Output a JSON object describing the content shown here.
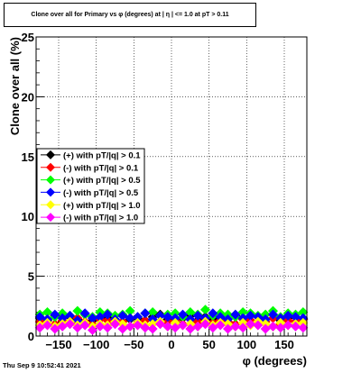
{
  "window": {
    "title": "Clone  over all for Primary vs φ (degrees) at |   η | <= 1.0 at pT > 0.11",
    "timestamp": "Thu Sep  9 10:52:41 2021"
  },
  "chart_data": {
    "type": "scatter",
    "title": "Clone  over all for Primary vs φ (degrees) at |   η | <= 1.0 at pT > 0.11",
    "xlabel": "φ (degrees)",
    "ylabel": "Clone  over all (%)",
    "xlim": [
      -180,
      180
    ],
    "ylim": [
      0,
      25
    ],
    "x_ticks": [
      -150,
      -100,
      -50,
      0,
      50,
      100,
      150
    ],
    "x_tick_labels": [
      "−150",
      "−100",
      "−50",
      "0",
      "50",
      "100",
      "150"
    ],
    "y_ticks": [
      0,
      5,
      10,
      15,
      20,
      25
    ],
    "y_tick_labels": [
      "0",
      "5",
      "10",
      "15",
      "20",
      "25"
    ],
    "grid": true,
    "legend_position": "left-middle",
    "series": [
      {
        "name": "(+) with pT/|q| > 0.1",
        "color": "#000000",
        "values": [
          1.5,
          1.3,
          1.7,
          1.2,
          1.6,
          1.4,
          1.8,
          1.3,
          1.5,
          1.6,
          1.2,
          1.7,
          1.4,
          1.5,
          1.3,
          1.6,
          1.8,
          1.4,
          1.2,
          1.5,
          1.7,
          1.3,
          1.6,
          1.4,
          1.5,
          1.2,
          1.7,
          1.5,
          1.3,
          1.6,
          1.4,
          1.8,
          1.3,
          1.5,
          1.6,
          1.4
        ]
      },
      {
        "name": "(-) with pT/|q| > 0.1",
        "color": "#ff0000",
        "values": [
          1.2,
          1.4,
          1.0,
          1.3,
          1.1,
          1.5,
          1.2,
          1.0,
          1.4,
          1.3,
          1.1,
          1.2,
          1.5,
          1.0,
          1.3,
          1.4,
          1.1,
          1.2,
          1.3,
          1.0,
          1.4,
          1.2,
          1.5,
          1.1,
          1.3,
          1.2,
          1.0,
          1.4,
          1.3,
          1.1,
          1.2,
          1.5,
          1.0,
          1.3,
          1.2,
          1.4
        ]
      },
      {
        "name": "(+) with pT/|q| > 0.5",
        "color": "#00ff00",
        "values": [
          1.8,
          2.0,
          1.6,
          1.9,
          1.7,
          2.1,
          1.8,
          1.6,
          2.0,
          1.9,
          1.7,
          1.8,
          2.1,
          1.6,
          1.9,
          2.0,
          1.7,
          1.8,
          1.9,
          1.6,
          2.0,
          1.8,
          2.2,
          1.7,
          1.9,
          1.8,
          1.6,
          2.0,
          1.9,
          1.7,
          1.8,
          2.1,
          1.6,
          1.9,
          1.8,
          2.0
        ]
      },
      {
        "name": "(-) with pT/|q| > 0.5",
        "color": "#0000ff",
        "values": [
          1.6,
          1.4,
          1.8,
          1.5,
          1.7,
          1.3,
          1.9,
          1.5,
          1.6,
          1.8,
          1.4,
          1.7,
          1.5,
          1.6,
          1.9,
          1.4,
          1.7,
          1.6,
          1.5,
          1.8,
          1.4,
          1.7,
          1.5,
          1.9,
          1.6,
          1.4,
          1.8,
          1.5,
          1.7,
          1.6,
          1.4,
          1.8,
          1.5,
          1.7,
          1.6,
          1.5
        ]
      },
      {
        "name": "(+) with pT/|q| > 1.0",
        "color": "#ffff00",
        "values": [
          0.9,
          1.1,
          0.8,
          1.0,
          1.2,
          0.9,
          1.1,
          0.8,
          1.0,
          0.9,
          1.2,
          1.0,
          0.8,
          1.1,
          0.9,
          1.0,
          1.2,
          0.8,
          1.1,
          0.9,
          1.0,
          0.8,
          1.2,
          0.9,
          1.1,
          1.0,
          0.8,
          1.1,
          0.9,
          1.2,
          1.0,
          0.8,
          1.1,
          0.9,
          1.0,
          1.1
        ]
      },
      {
        "name": "(-) with pT/|q| > 1.0",
        "color": "#ff00ff",
        "values": [
          0.7,
          0.9,
          0.6,
          0.8,
          1.0,
          0.7,
          0.9,
          0.5,
          0.8,
          0.7,
          1.0,
          0.6,
          0.8,
          0.9,
          0.7,
          0.6,
          1.0,
          0.8,
          0.7,
          0.9,
          0.6,
          0.8,
          1.0,
          0.7,
          0.9,
          0.6,
          0.8,
          0.7,
          1.0,
          0.9,
          0.6,
          0.8,
          0.7,
          0.9,
          0.8,
          0.7
        ]
      }
    ]
  }
}
